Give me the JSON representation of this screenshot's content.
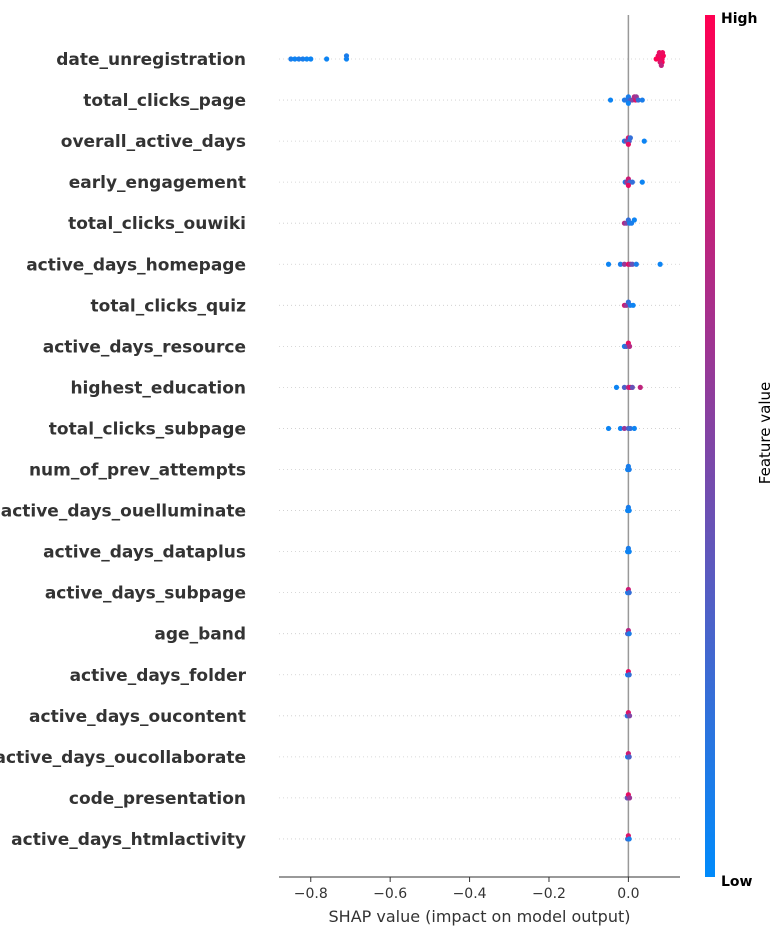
{
  "chart_data": {
    "type": "scatter",
    "subtype": "shap_beeswarm_summary",
    "xlabel": "SHAP value (impact on model output)",
    "xlim": [
      -0.88,
      0.13
    ],
    "xticks": [
      {
        "value": -0.8,
        "label": "−0.8"
      },
      {
        "value": -0.6,
        "label": "−0.6"
      },
      {
        "value": -0.4,
        "label": "−0.4"
      },
      {
        "value": -0.2,
        "label": "−0.2"
      },
      {
        "value": 0.0,
        "label": "0.0"
      }
    ],
    "colorbar": {
      "high_label": "High",
      "low_label": "Low",
      "title": "Feature value",
      "colors": [
        "#008bfb",
        "#ff0052"
      ]
    },
    "features": [
      {
        "name": "date_unregistration",
        "points": [
          [
            -0.85,
            0.1
          ],
          [
            -0.84,
            0.05
          ],
          [
            -0.83,
            0.1
          ],
          [
            -0.82,
            0.1
          ],
          [
            -0.81,
            0.05
          ],
          [
            -0.8,
            0.05
          ],
          [
            -0.76,
            0.05
          ],
          [
            -0.71,
            0.05
          ],
          [
            -0.71,
            0.1
          ],
          [
            0.07,
            1
          ],
          [
            0.075,
            0.95
          ],
          [
            0.08,
            0.98
          ],
          [
            0.082,
            0.9
          ],
          [
            0.085,
            0.92
          ],
          [
            0.088,
            0.97
          ],
          [
            0.085,
            1
          ],
          [
            0.08,
            0.85
          ],
          [
            0.078,
            0.9
          ],
          [
            0.083,
            0.75
          ],
          [
            0.086,
            0.93
          ]
        ]
      },
      {
        "name": "total_clicks_page",
        "points": [
          [
            -0.045,
            0.05
          ],
          [
            -0.01,
            0.1
          ],
          [
            -0.005,
            0.15
          ],
          [
            0,
            0.1
          ],
          [
            0.005,
            0.3
          ],
          [
            0.01,
            0.5
          ],
          [
            0.015,
            0.7
          ],
          [
            0.018,
            0.85
          ],
          [
            0.02,
            0.6
          ],
          [
            0.025,
            0.2
          ],
          [
            0.035,
            0.1
          ],
          [
            0,
            0.05
          ]
        ]
      },
      {
        "name": "overall_active_days",
        "points": [
          [
            -0.01,
            0.1
          ],
          [
            -0.005,
            0.5
          ],
          [
            0,
            0.8
          ],
          [
            0.002,
            0.3
          ],
          [
            0.005,
            0.2
          ],
          [
            0.04,
            0.05
          ],
          [
            0,
            0.9
          ]
        ]
      },
      {
        "name": "early_engagement",
        "points": [
          [
            -0.008,
            0.1
          ],
          [
            -0.004,
            0.6
          ],
          [
            0,
            0.8
          ],
          [
            0.004,
            0.3
          ],
          [
            0.01,
            0.2
          ],
          [
            0.035,
            0.05
          ],
          [
            0,
            0.9
          ]
        ]
      },
      {
        "name": "total_clicks_ouwiki",
        "points": [
          [
            -0.01,
            0.7
          ],
          [
            -0.005,
            0.5
          ],
          [
            0,
            0.2
          ],
          [
            0.003,
            0.1
          ],
          [
            0.008,
            0.1
          ],
          [
            0.015,
            0.05
          ]
        ]
      },
      {
        "name": "active_days_homepage",
        "points": [
          [
            -0.05,
            0.05
          ],
          [
            -0.02,
            0.1
          ],
          [
            -0.01,
            0.6
          ],
          [
            0,
            0.9
          ],
          [
            0.005,
            0.7
          ],
          [
            0.01,
            0.4
          ],
          [
            0.02,
            0.1
          ],
          [
            0.08,
            0.05
          ]
        ]
      },
      {
        "name": "total_clicks_quiz",
        "points": [
          [
            -0.01,
            0.8
          ],
          [
            -0.005,
            0.6
          ],
          [
            0,
            0.2
          ],
          [
            0.005,
            0.1
          ],
          [
            0.012,
            0.05
          ]
        ]
      },
      {
        "name": "active_days_resource",
        "points": [
          [
            -0.01,
            0.1
          ],
          [
            -0.005,
            0.3
          ],
          [
            0,
            0.9
          ],
          [
            0.003,
            0.7
          ]
        ]
      },
      {
        "name": "highest_education",
        "points": [
          [
            -0.03,
            0.05
          ],
          [
            -0.01,
            0.3
          ],
          [
            0,
            0.7
          ],
          [
            0.005,
            0.9
          ],
          [
            0.01,
            0.4
          ],
          [
            0.03,
            0.75
          ]
        ]
      },
      {
        "name": "total_clicks_subpage",
        "points": [
          [
            -0.05,
            0.05
          ],
          [
            -0.02,
            0.05
          ],
          [
            -0.01,
            0.6
          ],
          [
            0,
            0.3
          ],
          [
            0.005,
            0.2
          ],
          [
            0.015,
            0.05
          ]
        ]
      },
      {
        "name": "num_of_prev_attempts",
        "points": [
          [
            -0.002,
            0.05
          ],
          [
            0,
            0.1
          ],
          [
            0.002,
            0.1
          ]
        ]
      },
      {
        "name": "active_days_ouelluminate",
        "points": [
          [
            -0.002,
            0.05
          ],
          [
            0,
            0.1
          ],
          [
            0.002,
            0.05
          ]
        ]
      },
      {
        "name": "active_days_dataplus",
        "points": [
          [
            -0.002,
            0.05
          ],
          [
            0,
            0.1
          ],
          [
            0.002,
            0.05
          ]
        ]
      },
      {
        "name": "active_days_subpage",
        "points": [
          [
            -0.002,
            0.1
          ],
          [
            0,
            0.8
          ],
          [
            0.002,
            0.2
          ]
        ]
      },
      {
        "name": "age_band",
        "points": [
          [
            -0.002,
            0.3
          ],
          [
            0,
            0.7
          ],
          [
            0.002,
            0.1
          ]
        ]
      },
      {
        "name": "active_days_folder",
        "points": [
          [
            -0.002,
            0.1
          ],
          [
            0,
            0.9
          ],
          [
            0.002,
            0.2
          ]
        ]
      },
      {
        "name": "active_days_oucontent",
        "points": [
          [
            -0.003,
            0.2
          ],
          [
            0,
            0.85
          ],
          [
            0.003,
            0.5
          ]
        ]
      },
      {
        "name": "active_days_oucollaborate",
        "points": [
          [
            -0.002,
            0.1
          ],
          [
            0,
            0.8
          ],
          [
            0.002,
            0.3
          ]
        ]
      },
      {
        "name": "code_presentation",
        "points": [
          [
            -0.003,
            0.4
          ],
          [
            0,
            0.9
          ],
          [
            0.003,
            0.6
          ]
        ]
      },
      {
        "name": "active_days_htmlactivity",
        "points": [
          [
            -0.002,
            0.2
          ],
          [
            0,
            0.85
          ],
          [
            0.002,
            0.1
          ]
        ]
      }
    ]
  }
}
